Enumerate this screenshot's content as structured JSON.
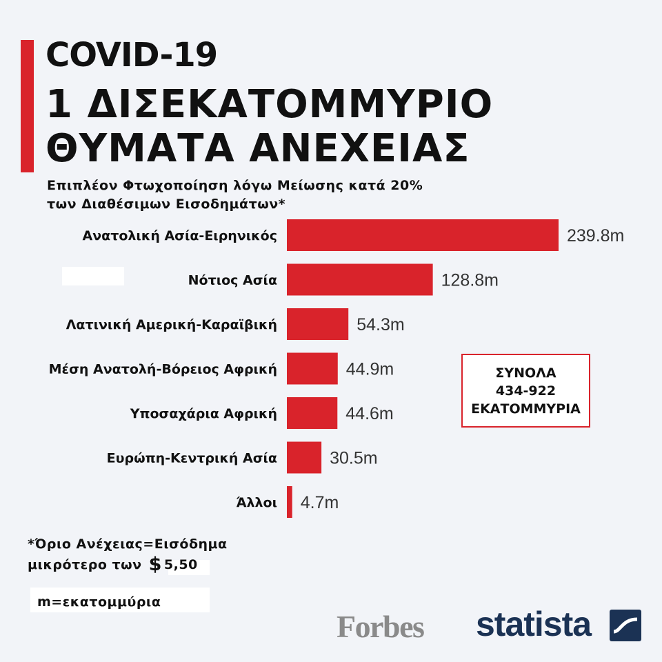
{
  "header": {
    "title_top": "COVID-19",
    "title_main": "1 ΔΙΣΕΚΑΤΟΜΜΥΡΙΟ ΘΥΜΑΤΑ ΑΝΕΧΕΙΑΣ",
    "subtitle_line1": "Επιπλέον Φτωχοποίηση λόγω Μείωσης κατά 20%",
    "subtitle_line2": "των Διαθέσιμων Εισοδημάτων*"
  },
  "totals_box": {
    "line1": "ΣΥΝΟΛΑ",
    "line2": "434-922",
    "line3": "ΕΚΑΤΟΜΜΥΡΙΑ"
  },
  "footnote": {
    "line1": "*Όριο Ανέχειας=Εισόδημα",
    "line2_text": "μικρότερο των",
    "currency_symbol": "$",
    "amount": "5,50"
  },
  "unit_note": "m=εκατομμύρια",
  "logos": {
    "forbes": "Forbes",
    "statista": "statista"
  },
  "colors": {
    "accent": "#d9232b",
    "bar": "#d9232b",
    "background": "#f2f4f8"
  },
  "icons": {
    "statista_mark": "statista-logo-icon"
  },
  "chart_data": {
    "type": "bar",
    "orientation": "horizontal",
    "categories": [
      "Ανατολική Ασία-Ειρηνικός",
      "Νότιος Ασία",
      "Λατινική Αμερική-Καραϊβική",
      "Μέση Ανατολή-Βόρειος Αφρική",
      "Υποσαχάρια Αφρική",
      "Ευρώπη-Κεντρική Ασία",
      "Άλλοι"
    ],
    "values": [
      239.8,
      128.8,
      54.3,
      44.9,
      44.6,
      30.5,
      4.7
    ],
    "value_labels": [
      "239.8m",
      "128.8m",
      "54.3m",
      "44.9m",
      "44.6m",
      "30.5m",
      "4.7m"
    ],
    "xlim": [
      0,
      239.8
    ],
    "grid": false
  }
}
